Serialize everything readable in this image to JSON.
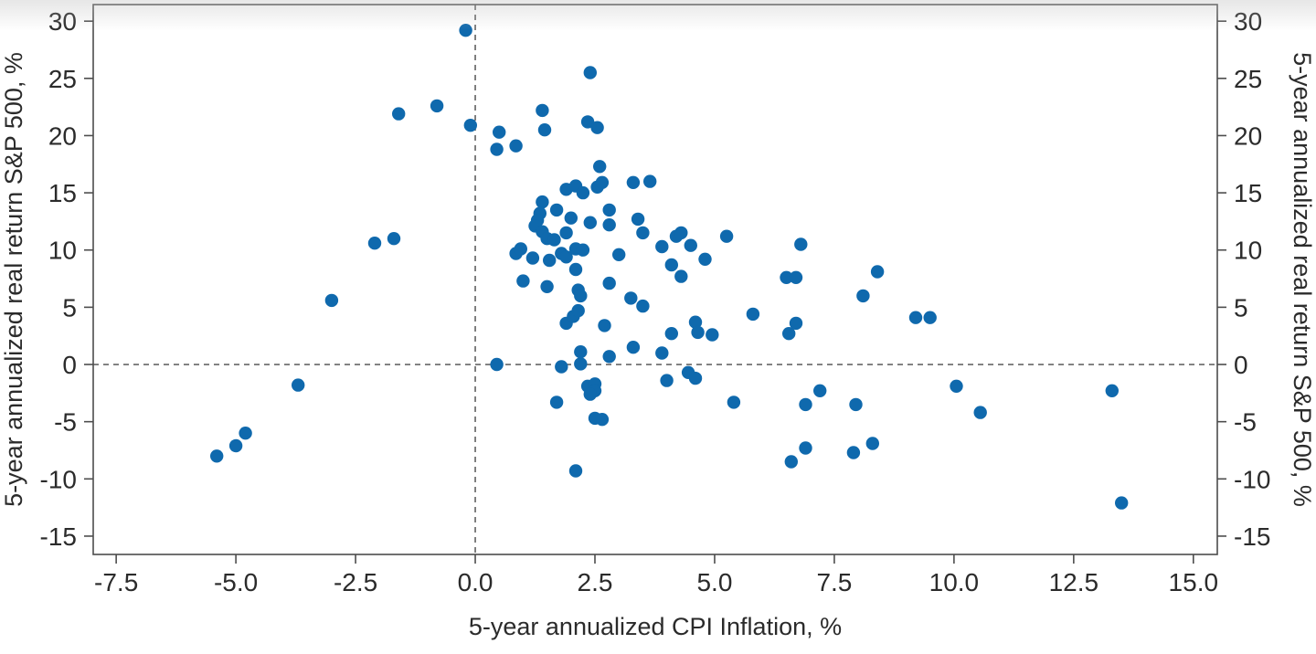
{
  "chart_data": {
    "type": "scatter",
    "title": "",
    "xlabel": "5-year annualized CPI Inflation, %",
    "ylabel_left": "5-year annualized real return S&P 500, %",
    "ylabel_right": "5-year annualized real return S&P 500, %",
    "xlim": [
      -7.98,
      15.5
    ],
    "ylim": [
      -16.6,
      31.45
    ],
    "x_tick_values": [
      -7.5,
      -5.0,
      -2.5,
      0.0,
      2.5,
      5.0,
      7.5,
      10.0,
      12.5,
      15.0
    ],
    "x_tick_labels": [
      "-7.5",
      "-5.0",
      "-2.5",
      "0.0",
      "2.5",
      "5.0",
      "7.5",
      "10.0",
      "12.5",
      "15.0"
    ],
    "y_tick_values": [
      30,
      25,
      20,
      15,
      10,
      5,
      0,
      -5,
      -10,
      -15
    ],
    "y_tick_labels": [
      "30",
      "25",
      "20",
      "15",
      "10",
      "5",
      "0",
      "-5",
      "-10",
      "-15"
    ],
    "reference_line_x": 0,
    "reference_line_y": 0,
    "grid": false,
    "legend": null,
    "point_color": "#0f69ad",
    "axis_color": "#4d4d4d",
    "text_color": "#2b2b2b",
    "points": [
      [
        -5.4,
        -8.0
      ],
      [
        -5.0,
        -7.1
      ],
      [
        -4.8,
        -6.0
      ],
      [
        -3.7,
        -1.8
      ],
      [
        -3.0,
        5.6
      ],
      [
        -2.1,
        10.6
      ],
      [
        -1.7,
        11.0
      ],
      [
        -1.6,
        21.9
      ],
      [
        -0.8,
        22.6
      ],
      [
        -0.2,
        29.2
      ],
      [
        -0.1,
        20.9
      ],
      [
        0.5,
        20.3
      ],
      [
        0.45,
        18.8
      ],
      [
        0.85,
        19.1
      ],
      [
        1.4,
        22.2
      ],
      [
        1.45,
        20.5
      ],
      [
        2.4,
        25.5
      ],
      [
        2.35,
        21.2
      ],
      [
        2.55,
        20.7
      ],
      [
        2.6,
        17.3
      ],
      [
        1.9,
        15.3
      ],
      [
        2.1,
        15.6
      ],
      [
        2.25,
        15.0
      ],
      [
        2.55,
        15.5
      ],
      [
        2.65,
        15.9
      ],
      [
        3.3,
        15.9
      ],
      [
        3.65,
        16.0
      ],
      [
        1.4,
        14.2
      ],
      [
        1.7,
        13.5
      ],
      [
        1.35,
        13.2
      ],
      [
        1.3,
        12.6
      ],
      [
        2.0,
        12.8
      ],
      [
        2.4,
        12.4
      ],
      [
        2.8,
        13.5
      ],
      [
        2.8,
        12.2
      ],
      [
        3.4,
        12.7
      ],
      [
        1.25,
        12.1
      ],
      [
        1.4,
        11.6
      ],
      [
        1.5,
        11.0
      ],
      [
        1.65,
        10.9
      ],
      [
        1.9,
        11.5
      ],
      [
        2.1,
        10.1
      ],
      [
        2.25,
        10.0
      ],
      [
        3.5,
        11.5
      ],
      [
        3.9,
        10.3
      ],
      [
        4.2,
        11.2
      ],
      [
        4.3,
        11.5
      ],
      [
        4.5,
        10.4
      ],
      [
        5.25,
        11.2
      ],
      [
        6.8,
        10.5
      ],
      [
        0.85,
        9.7
      ],
      [
        0.95,
        10.1
      ],
      [
        1.2,
        9.3
      ],
      [
        1.55,
        9.1
      ],
      [
        1.8,
        9.7
      ],
      [
        1.9,
        9.4
      ],
      [
        2.1,
        8.3
      ],
      [
        3.0,
        9.6
      ],
      [
        4.1,
        8.7
      ],
      [
        4.8,
        9.2
      ],
      [
        8.4,
        8.1
      ],
      [
        1.0,
        7.3
      ],
      [
        1.5,
        6.8
      ],
      [
        2.15,
        6.5
      ],
      [
        2.2,
        6.0
      ],
      [
        2.8,
        7.1
      ],
      [
        3.25,
        5.8
      ],
      [
        3.5,
        5.1
      ],
      [
        4.3,
        7.7
      ],
      [
        6.5,
        7.6
      ],
      [
        6.7,
        7.6
      ],
      [
        8.1,
        6.0
      ],
      [
        1.9,
        3.6
      ],
      [
        2.05,
        4.2
      ],
      [
        2.15,
        4.7
      ],
      [
        2.7,
        3.4
      ],
      [
        4.1,
        2.7
      ],
      [
        4.6,
        3.7
      ],
      [
        4.65,
        2.8
      ],
      [
        4.95,
        2.6
      ],
      [
        5.8,
        4.4
      ],
      [
        6.55,
        2.7
      ],
      [
        6.7,
        3.6
      ],
      [
        9.2,
        4.1
      ],
      [
        9.5,
        4.1
      ],
      [
        0.45,
        0.0
      ],
      [
        1.8,
        -0.2
      ],
      [
        2.2,
        0.05
      ],
      [
        2.2,
        1.1
      ],
      [
        2.8,
        0.7
      ],
      [
        3.3,
        1.5
      ],
      [
        3.9,
        1.0
      ],
      [
        2.35,
        -1.9
      ],
      [
        2.5,
        -1.7
      ],
      [
        2.5,
        -2.3
      ],
      [
        2.4,
        -2.6
      ],
      [
        1.7,
        -3.3
      ],
      [
        2.5,
        -4.7
      ],
      [
        2.65,
        -4.8
      ],
      [
        4.0,
        -1.4
      ],
      [
        4.45,
        -0.7
      ],
      [
        4.6,
        -1.2
      ],
      [
        5.4,
        -3.3
      ],
      [
        6.9,
        -3.5
      ],
      [
        7.2,
        -2.3
      ],
      [
        7.95,
        -3.5
      ],
      [
        10.05,
        -1.9
      ],
      [
        10.55,
        -4.2
      ],
      [
        13.3,
        -2.3
      ],
      [
        2.1,
        -9.3
      ],
      [
        6.6,
        -8.5
      ],
      [
        6.9,
        -7.3
      ],
      [
        7.9,
        -7.7
      ],
      [
        8.3,
        -6.9
      ],
      [
        13.5,
        -12.1
      ]
    ]
  }
}
